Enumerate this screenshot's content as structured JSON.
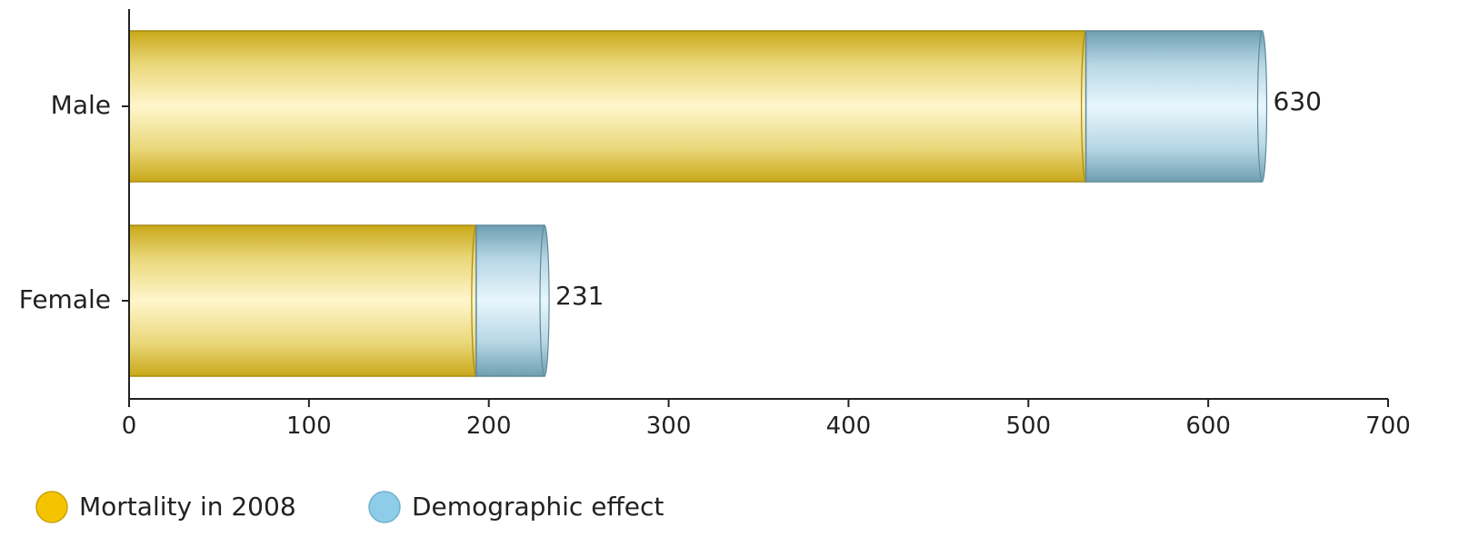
{
  "chart_data": {
    "type": "bar",
    "orientation": "horizontal",
    "stacked": true,
    "categories": [
      "Male",
      "Female"
    ],
    "series": [
      {
        "name": "Mortality in 2008",
        "values": [
          532,
          193
        ],
        "color": "#F5C400"
      },
      {
        "name": "Demographic effect",
        "values": [
          98,
          38
        ],
        "color": "#8ECDE8"
      }
    ],
    "totals": [
      630,
      231
    ],
    "xlim": [
      0,
      700
    ],
    "xticks": [
      0,
      100,
      200,
      300,
      400,
      500,
      600,
      700
    ],
    "grid": false,
    "legend_position": "bottom-left"
  }
}
